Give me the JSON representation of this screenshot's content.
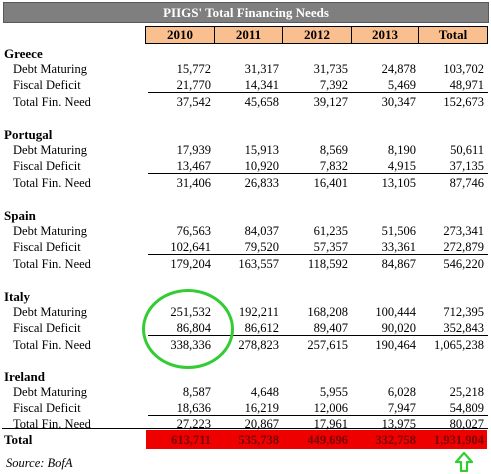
{
  "title": "PIIGS' Total Financing Needs",
  "columns": [
    "2010",
    "2011",
    "2012",
    "2013",
    "Total"
  ],
  "row_labels": {
    "debt": "Debt Maturing",
    "deficit": "Fiscal Deficit",
    "total": "Total Fin. Need"
  },
  "countries": [
    {
      "name": "Greece",
      "debt": [
        "15,772",
        "31,317",
        "31,735",
        "24,878",
        "103,702"
      ],
      "deficit": [
        "21,770",
        "14,341",
        "7,392",
        "5,469",
        "48,971"
      ],
      "total": [
        "37,542",
        "45,658",
        "39,127",
        "30,347",
        "152,673"
      ]
    },
    {
      "name": "Portugal",
      "debt": [
        "17,939",
        "15,913",
        "8,569",
        "8,190",
        "50,611"
      ],
      "deficit": [
        "13,467",
        "10,920",
        "7,832",
        "4,915",
        "37,135"
      ],
      "total": [
        "31,406",
        "26,833",
        "16,401",
        "13,105",
        "87,746"
      ]
    },
    {
      "name": "Spain",
      "debt": [
        "76,563",
        "84,037",
        "61,235",
        "51,506",
        "273,341"
      ],
      "deficit": [
        "102,641",
        "79,520",
        "57,357",
        "33,361",
        "272,879"
      ],
      "total": [
        "179,204",
        "163,557",
        "118,592",
        "84,867",
        "546,220"
      ]
    },
    {
      "name": "Italy",
      "debt": [
        "251,532",
        "192,211",
        "168,208",
        "100,444",
        "712,395"
      ],
      "deficit": [
        "86,804",
        "86,612",
        "89,407",
        "90,020",
        "352,843"
      ],
      "total": [
        "338,336",
        "278,823",
        "257,615",
        "190,464",
        "1,065,238"
      ]
    },
    {
      "name": "Ireland",
      "debt": [
        "8,587",
        "4,648",
        "5,955",
        "6,028",
        "25,218"
      ],
      "deficit": [
        "18,636",
        "16,219",
        "12,006",
        "7,947",
        "54,809"
      ],
      "total": [
        "27,223",
        "20,867",
        "17,961",
        "13,975",
        "80,027"
      ]
    }
  ],
  "grand_total": {
    "label": "Total",
    "values": [
      "613,711",
      "535,738",
      "449,696",
      "332,758",
      "1,931,904"
    ]
  },
  "source": "Source: BofA",
  "colors": {
    "header_fill": "#fabf8f",
    "title_fill": "#7f7f7f",
    "total_fill": "#ee0000",
    "highlight_circle": "#33cc33",
    "arrow": "#33cc33"
  },
  "annotations": {
    "circle_icon": "green-circle-highlight",
    "arrow_icon": "green-up-arrow-icon"
  }
}
